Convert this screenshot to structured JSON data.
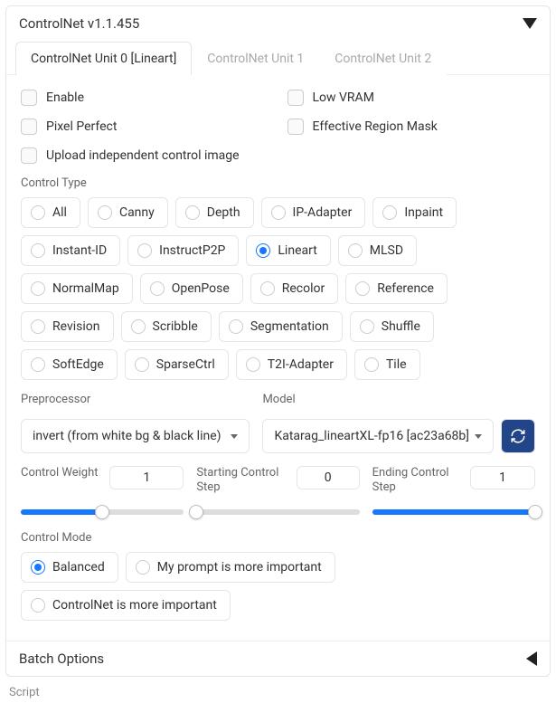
{
  "header": {
    "title": "ControlNet v1.1.455"
  },
  "tabs": [
    {
      "label": "ControlNet Unit 0 [Lineart]",
      "active": true
    },
    {
      "label": "ControlNet Unit 1",
      "active": false
    },
    {
      "label": "ControlNet Unit 2",
      "active": false
    }
  ],
  "checkboxes": {
    "enable": "Enable",
    "low_vram": "Low VRAM",
    "pixel_perfect": "Pixel Perfect",
    "eff_region": "Effective Region Mask",
    "upload_ind": "Upload independent control image"
  },
  "control_type": {
    "label": "Control Type",
    "options": [
      "All",
      "Canny",
      "Depth",
      "IP-Adapter",
      "Inpaint",
      "Instant-ID",
      "InstructP2P",
      "Lineart",
      "MLSD",
      "NormalMap",
      "OpenPose",
      "Recolor",
      "Reference",
      "Revision",
      "Scribble",
      "Segmentation",
      "Shuffle",
      "SoftEdge",
      "SparseCtrl",
      "T2I-Adapter",
      "Tile"
    ],
    "selected": "Lineart"
  },
  "preprocessor": {
    "label": "Preprocessor",
    "value": "invert (from white bg & black line)"
  },
  "model": {
    "label": "Model",
    "value": "Katarag_lineartXL-fp16 [ac23a68b]"
  },
  "sliders": {
    "weight": {
      "label": "Control Weight",
      "value": "1",
      "pct": 50
    },
    "start": {
      "label": "Starting Control Step",
      "value": "0",
      "pct": 0
    },
    "end": {
      "label": "Ending Control Step",
      "value": "1",
      "pct": 100
    }
  },
  "control_mode": {
    "label": "Control Mode",
    "options": [
      "Balanced",
      "My prompt is more important",
      "ControlNet is more important"
    ],
    "selected": "Balanced"
  },
  "batch": {
    "label": "Batch Options"
  },
  "script": {
    "label": "Script"
  },
  "colors": {
    "accent": "#1677ff",
    "border": "#e5e5e5",
    "text_muted": "#666"
  }
}
